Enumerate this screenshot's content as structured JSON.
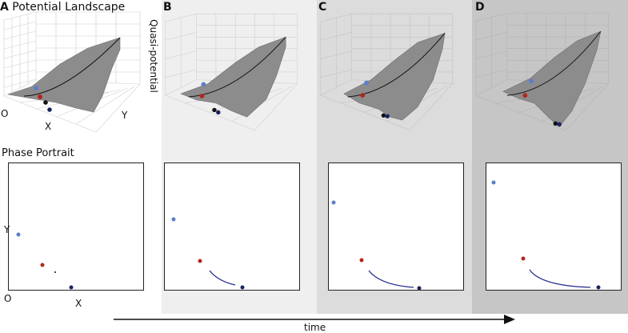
{
  "figure": {
    "panels": [
      {
        "letter": "A",
        "title": "Potential Landscape",
        "background": "#ffffff"
      },
      {
        "letter": "B",
        "background": "#efefef"
      },
      {
        "letter": "C",
        "background": "#dcdcdc"
      },
      {
        "letter": "D",
        "background": "#c6c6c6"
      }
    ],
    "landscape_labels": {
      "z_axis": "Quasi-potential",
      "x_axis": "X",
      "y_axis": "Y",
      "origin": "O"
    },
    "phase_portrait": {
      "title": "Phase Portrait",
      "x_axis": "X",
      "y_axis": "Y",
      "origin": "O"
    },
    "time_axis": {
      "label": "time"
    },
    "colors": {
      "surface": "#8c8c8c",
      "surface_mesh": "#6f6f6f",
      "curve": "#111111",
      "light_blue_point": "#5b7fc6",
      "red_point": "#b3261e",
      "black_point": "#111111",
      "dark_navy_point": "#1b2260",
      "trajectory": "#1f2a8a"
    }
  }
}
